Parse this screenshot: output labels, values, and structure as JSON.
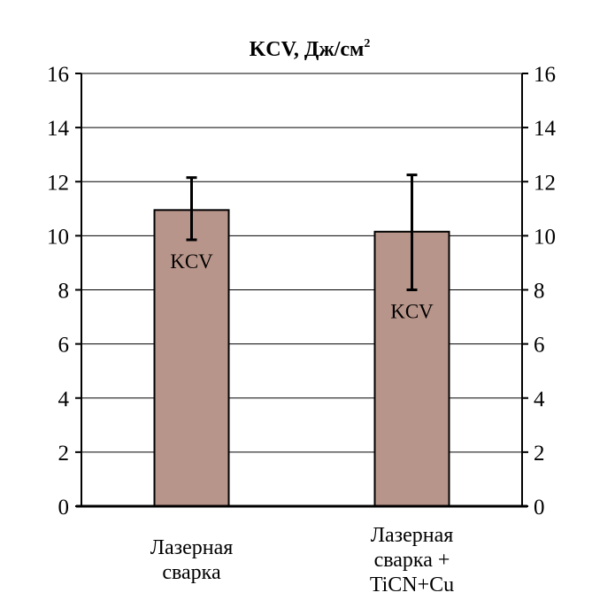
{
  "chart_data": {
    "type": "bar",
    "title": "KCV, Дж/см",
    "title_superscript": "2",
    "categories": [
      [
        "Лазерная",
        "сварка"
      ],
      [
        "Лазерная",
        "сварка +",
        "TiCN+Cu"
      ]
    ],
    "series": [
      {
        "values": [
          10.95,
          10.15
        ],
        "error_low": [
          9.85,
          8.0
        ],
        "error_high": [
          12.15,
          12.25
        ],
        "data_labels": [
          "KCV",
          "KCV"
        ],
        "color": "#b8958a"
      }
    ],
    "ylim": [
      0,
      16
    ],
    "yticks": [
      "0",
      "2",
      "4",
      "6",
      "8",
      "10",
      "12",
      "14",
      "16"
    ],
    "secondary_yticks": [
      "0",
      "2",
      "4",
      "6",
      "8",
      "10",
      "12",
      "14",
      "16"
    ],
    "grid": true,
    "legend": "none"
  }
}
